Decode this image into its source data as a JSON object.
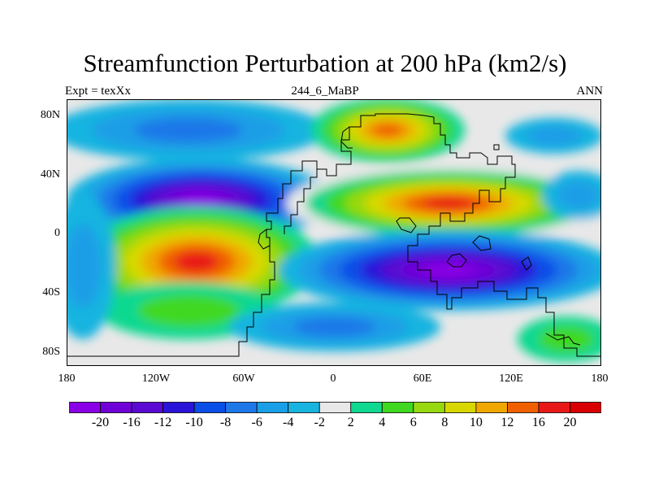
{
  "title": "Streamfunction Perturbation at 200 hPa (km2/s)",
  "left_label": "Expt = texXx",
  "center_label": "244_6_MaBP",
  "right_label": "ANN",
  "lat_ticks": [
    "80N",
    "40N",
    "0",
    "40S",
    "80S"
  ],
  "lon_ticks": [
    "180",
    "120W",
    "60W",
    "0",
    "60E",
    "120E",
    "180"
  ],
  "colorbar": {
    "labels": [
      "-20",
      "-16",
      "-12",
      "-10",
      "-8",
      "-6",
      "-4",
      "-2",
      "2",
      "4",
      "6",
      "8",
      "10",
      "12",
      "16",
      "20"
    ],
    "colors": [
      "#8a00e6",
      "#7000d8",
      "#5a0ad2",
      "#2a14d8",
      "#0a4ee8",
      "#1e78e8",
      "#1a9ee6",
      "#18b4e0",
      "#e8e8e8",
      "#10d890",
      "#40d820",
      "#98d810",
      "#d8d800",
      "#f0a800",
      "#f06000",
      "#e81818",
      "#d80000"
    ]
  },
  "colors": {
    "background": "#ffffff",
    "neutral": "#e8e8e8",
    "coastline": "#000000"
  }
}
